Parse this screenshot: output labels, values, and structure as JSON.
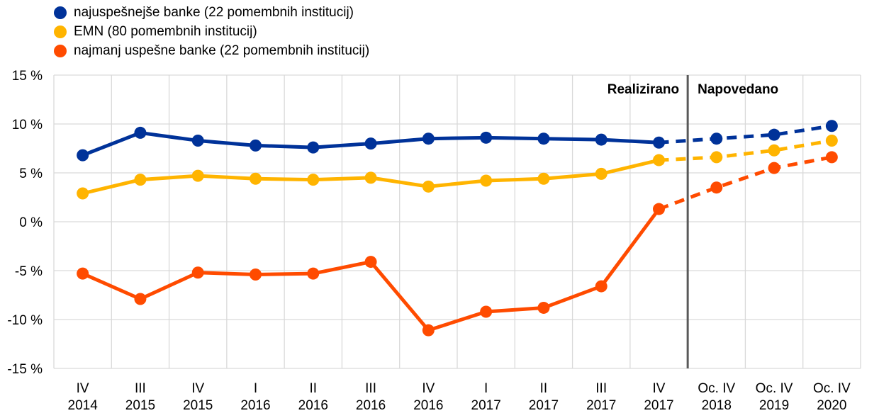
{
  "chart_data": {
    "type": "line",
    "ylim": [
      -15,
      15
    ],
    "yticks": [
      {
        "value": 15,
        "label": "15 %"
      },
      {
        "value": 10,
        "label": "10 %"
      },
      {
        "value": 5,
        "label": "5 %"
      },
      {
        "value": 0,
        "label": "0 %"
      },
      {
        "value": -5,
        "label": "-5 %"
      },
      {
        "value": -10,
        "label": "-10 %"
      },
      {
        "value": -15,
        "label": "-15 %"
      }
    ],
    "categories": [
      [
        "IV",
        "2014"
      ],
      [
        "III",
        "2015"
      ],
      [
        "IV",
        "2015"
      ],
      [
        "I",
        "2016"
      ],
      [
        "II",
        "2016"
      ],
      [
        "III",
        "2016"
      ],
      [
        "IV",
        "2016"
      ],
      [
        "I",
        "2017"
      ],
      [
        "II",
        "2017"
      ],
      [
        "III",
        "2017"
      ],
      [
        "IV",
        "2017"
      ],
      [
        "Oc. IV",
        "2018"
      ],
      [
        "Oc. IV",
        "2019"
      ],
      [
        "Oc. IV",
        "2020"
      ]
    ],
    "projection_start_index": 10,
    "divider_label_left": "Realizirano",
    "divider_label_right": "Napovedano",
    "grid": true,
    "legend_position": "top-left",
    "series": [
      {
        "name": "najuspešnejše banke (22 pomembnih institucij)",
        "color": "#003299",
        "values": [
          6.8,
          9.1,
          8.3,
          7.8,
          7.6,
          8.0,
          8.5,
          8.6,
          8.5,
          8.4,
          8.1,
          8.5,
          8.9,
          9.8
        ]
      },
      {
        "name": "EMN (80 pomembnih institucij)",
        "color": "#FFB400",
        "values": [
          2.9,
          4.3,
          4.7,
          4.4,
          4.3,
          4.5,
          3.6,
          4.2,
          4.4,
          4.9,
          6.3,
          6.6,
          7.3,
          8.3
        ]
      },
      {
        "name": "najmanj uspešne banke (22 pomembnih institucij)",
        "color": "#FF4B00",
        "values": [
          -5.3,
          -7.9,
          -5.2,
          -5.4,
          -5.3,
          -4.1,
          -11.1,
          -9.2,
          -8.8,
          -6.6,
          1.3,
          3.5,
          5.5,
          6.6
        ]
      }
    ]
  }
}
